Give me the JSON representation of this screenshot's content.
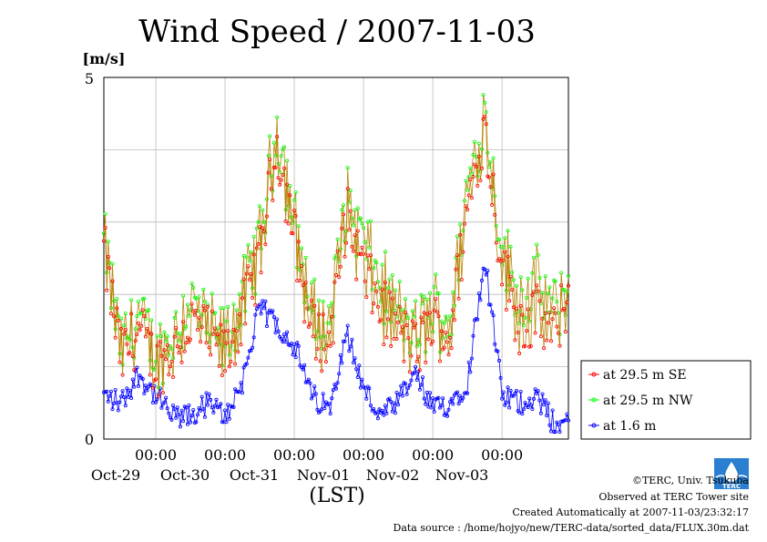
{
  "chart_data": {
    "type": "line",
    "title": "Wind Speed / 2007-11-03",
    "ylabel": "[m/s]",
    "xlabel": "(LST)",
    "ylim": [
      0,
      5
    ],
    "yticks": [
      "0",
      "5"
    ],
    "x_start": "2007-10-28 06:00",
    "x_end": "2007-11-03 23:00",
    "x_ticks": [
      {
        "x": "2007-10-29 00:00",
        "time": "00:00",
        "date": "Oct-29"
      },
      {
        "x": "2007-10-30 00:00",
        "time": "00:00",
        "date": "Oct-30"
      },
      {
        "x": "2007-10-31 00:00",
        "time": "00:00",
        "date": "Oct-31"
      },
      {
        "x": "2007-11-01 00:00",
        "time": "00:00",
        "date": "Nov-01"
      },
      {
        "x": "2007-11-02 00:00",
        "time": "00:00",
        "date": "Nov-02"
      },
      {
        "x": "2007-11-03 00:00",
        "time": "00:00",
        "date": "Nov-03"
      }
    ],
    "grid": true,
    "legend_position": "right",
    "series": [
      {
        "name": "at 29.5 m SE",
        "color": "#ff0000",
        "line_color": "#b8860b",
        "key": "se"
      },
      {
        "name": "at 29.5 m NW",
        "color": "#00ff00",
        "line_color": "#b8860b",
        "key": "nw"
      },
      {
        "name": "at 1.6 m",
        "color": "#0000ff",
        "line_color": "#0000ff",
        "key": "low"
      }
    ],
    "keypoints": {
      "x": [
        "2007-10-28 06:00",
        "2007-10-28 12:00",
        "2007-10-28 18:00",
        "2007-10-29 00:00",
        "2007-10-29 06:00",
        "2007-10-29 12:00",
        "2007-10-29 18:00",
        "2007-10-30 00:00",
        "2007-10-30 06:00",
        "2007-10-30 12:00",
        "2007-10-30 18:00",
        "2007-10-31 00:00",
        "2007-10-31 06:00",
        "2007-10-31 12:00",
        "2007-10-31 18:00",
        "2007-11-01 00:00",
        "2007-11-01 06:00",
        "2007-11-01 12:00",
        "2007-11-01 18:00",
        "2007-11-02 00:00",
        "2007-11-02 06:00",
        "2007-11-02 12:00",
        "2007-11-02 18:00",
        "2007-11-03 00:00",
        "2007-11-03 06:00",
        "2007-11-03 12:00",
        "2007-11-03 18:00",
        "2007-11-03 23:00"
      ],
      "se": [
        2.6,
        1.1,
        1.5,
        1.0,
        1.2,
        1.6,
        1.4,
        1.1,
        1.7,
        2.5,
        4.1,
        2.8,
        1.5,
        1.3,
        3.1,
        2.3,
        1.8,
        1.5,
        1.2,
        1.6,
        1.4,
        3.2,
        4.3,
        2.4,
        1.6,
        1.7,
        1.4,
        2.0
      ],
      "nw": [
        2.7,
        1.2,
        1.7,
        1.1,
        1.4,
        1.9,
        1.5,
        1.3,
        1.9,
        2.7,
        4.3,
        3.0,
        1.7,
        1.5,
        3.3,
        2.7,
        2.1,
        1.7,
        1.4,
        1.8,
        1.6,
        3.4,
        4.5,
        2.6,
        1.9,
        2.1,
        1.7,
        2.1
      ],
      "low": [
        0.6,
        0.5,
        0.9,
        0.6,
        0.3,
        0.3,
        0.5,
        0.3,
        0.8,
        1.8,
        1.6,
        1.3,
        0.6,
        0.4,
        1.5,
        0.7,
        0.3,
        0.5,
        0.9,
        0.4,
        0.5,
        0.8,
        2.5,
        0.6,
        0.5,
        0.6,
        0.2,
        0.2
      ]
    }
  },
  "logo": {
    "text": "TERC"
  },
  "footer": {
    "copyright": "©TERC, Univ. Tsukuba",
    "observed": "Observed at TERC Tower site",
    "created": "Created Automatically at 2007-11-03/23:32:17",
    "source": "Data source : /home/hojyo/new/TERC-data/sorted_data/FLUX.30m.dat"
  }
}
